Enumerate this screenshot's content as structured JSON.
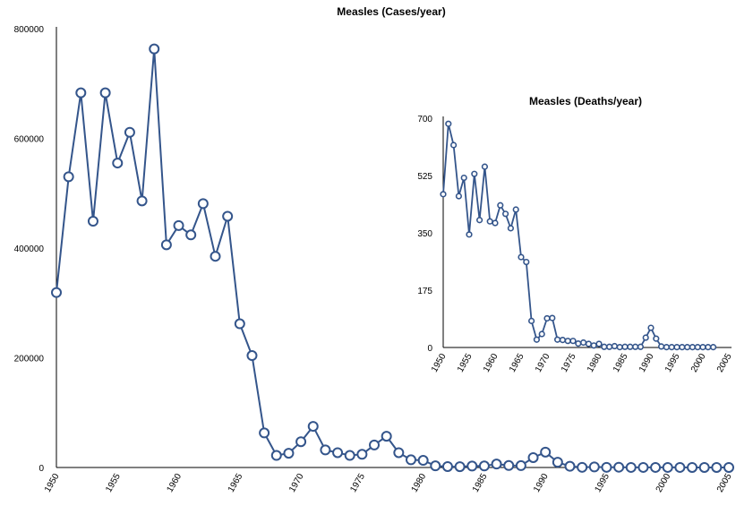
{
  "colors": {
    "series": "#34558b",
    "marker_fill": "#ffffff",
    "axis": "#000000"
  },
  "chart_data": [
    {
      "type": "line",
      "title": "Measles (Cases/year)",
      "xlabel": "",
      "ylabel": "",
      "xlim": [
        1950,
        2005
      ],
      "ylim": [
        0,
        800000
      ],
      "grid": false,
      "x_ticks": [
        "1950",
        "1955",
        "1960",
        "1965",
        "1970",
        "1975",
        "1980",
        "1985",
        "1990",
        "1995",
        "2000",
        "2005"
      ],
      "y_ticks": [
        "0",
        "200000",
        "400000",
        "600000",
        "800000"
      ],
      "x": [
        1950,
        1951,
        1952,
        1953,
        1954,
        1955,
        1956,
        1957,
        1958,
        1959,
        1960,
        1961,
        1962,
        1963,
        1964,
        1965,
        1966,
        1967,
        1968,
        1969,
        1970,
        1971,
        1972,
        1973,
        1974,
        1975,
        1976,
        1977,
        1978,
        1979,
        1980,
        1981,
        1982,
        1983,
        1984,
        1985,
        1986,
        1987,
        1988,
        1989,
        1990,
        1991,
        1992,
        1993,
        1994,
        1995,
        1996,
        1997,
        1998,
        1999,
        2000,
        2001,
        2002,
        2003,
        2004,
        2005
      ],
      "values": [
        319000,
        530000,
        683000,
        449000,
        683000,
        555000,
        611000,
        486000,
        763000,
        406000,
        441000,
        424000,
        481000,
        385000,
        458000,
        262000,
        204000,
        63000,
        22000,
        26000,
        47000,
        75000,
        32000,
        27000,
        22000,
        24000,
        41000,
        57000,
        27000,
        14000,
        13000,
        3000,
        1700,
        1500,
        2600,
        2800,
        6300,
        3600,
        3400,
        18000,
        28000,
        9600,
        2200,
        300,
        1000,
        300,
        500,
        100,
        100,
        100,
        100,
        100,
        40,
        60,
        40,
        70
      ]
    },
    {
      "type": "line",
      "title": "Measles (Deaths/year)",
      "xlabel": "",
      "ylabel": "",
      "xlim": [
        1950,
        2005
      ],
      "ylim": [
        0,
        700
      ],
      "grid": false,
      "x_ticks": [
        "1950",
        "1955",
        "1960",
        "1965",
        "1970",
        "1975",
        "1980",
        "1985",
        "1990",
        "1995",
        "2000",
        "2005"
      ],
      "y_ticks": [
        "0",
        "175",
        "350",
        "525",
        "700"
      ],
      "x": [
        1950,
        1951,
        1952,
        1953,
        1954,
        1955,
        1956,
        1957,
        1958,
        1959,
        1960,
        1961,
        1962,
        1963,
        1964,
        1965,
        1966,
        1967,
        1968,
        1969,
        1970,
        1971,
        1972,
        1973,
        1974,
        1975,
        1976,
        1977,
        1978,
        1979,
        1980,
        1981,
        1982,
        1983,
        1984,
        1985,
        1986,
        1987,
        1988,
        1989,
        1990,
        1991,
        1992,
        1993,
        1994,
        1995,
        1996,
        1997,
        1998,
        1999,
        2000,
        2001,
        2002
      ],
      "values": [
        468,
        683,
        618,
        462,
        518,
        345,
        530,
        389,
        552,
        385,
        380,
        434,
        408,
        364,
        421,
        276,
        261,
        81,
        24,
        41,
        89,
        90,
        24,
        23,
        20,
        20,
        12,
        15,
        11,
        6,
        11,
        2,
        2,
        4,
        1,
        2,
        2,
        2,
        2,
        30,
        60,
        27,
        3,
        1,
        1,
        1,
        1,
        1,
        1,
        1,
        1,
        1,
        1
      ]
    }
  ]
}
